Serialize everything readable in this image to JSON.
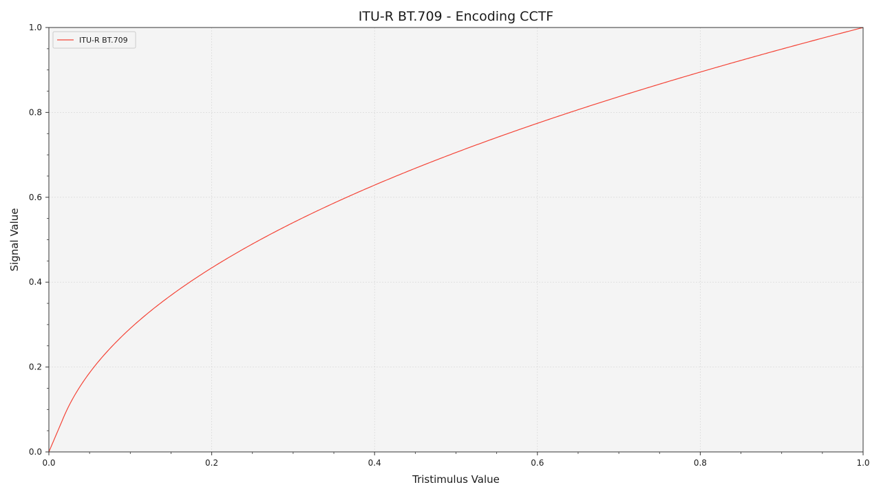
{
  "chart_data": {
    "type": "line",
    "title": "ITU-R BT.709 - Encoding CCTF",
    "xlabel": "Tristimulus Value",
    "ylabel": "Signal Value",
    "xlim": [
      0.0,
      1.0
    ],
    "ylim": [
      0.0,
      1.0
    ],
    "xticks": [
      "0.0",
      "0.2",
      "0.4",
      "0.6",
      "0.8",
      "1.0"
    ],
    "yticks": [
      "0.0",
      "0.2",
      "0.4",
      "0.6",
      "0.8",
      "1.0"
    ],
    "grid": true,
    "legend_position": "upper left",
    "series": [
      {
        "name": "ITU-R BT.709",
        "color": "#f44336",
        "x": [
          0.0,
          0.018,
          0.05,
          0.1,
          0.15,
          0.2,
          0.3,
          0.4,
          0.5,
          0.6,
          0.7,
          0.8,
          0.9,
          1.0
        ],
        "y": [
          0.0,
          0.081,
          0.185,
          0.291,
          0.368,
          0.433,
          0.541,
          0.632,
          0.708,
          0.776,
          0.838,
          0.895,
          0.949,
          1.0
        ]
      }
    ]
  },
  "colors": {
    "plot_background": "#f4f4f4",
    "axes": "#333333",
    "grid": "#d3d3d3"
  }
}
